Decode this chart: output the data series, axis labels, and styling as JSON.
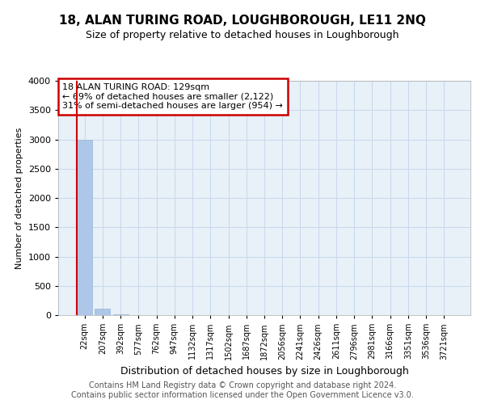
{
  "title": "18, ALAN TURING ROAD, LOUGHBOROUGH, LE11 2NQ",
  "subtitle": "Size of property relative to detached houses in Loughborough",
  "xlabel": "Distribution of detached houses by size in Loughborough",
  "ylabel": "Number of detached properties",
  "footnote1": "Contains HM Land Registry data © Crown copyright and database right 2024.",
  "footnote2": "Contains public sector information licensed under the Open Government Licence v3.0.",
  "bin_labels": [
    "22sqm",
    "207sqm",
    "392sqm",
    "577sqm",
    "762sqm",
    "947sqm",
    "1132sqm",
    "1317sqm",
    "1502sqm",
    "1687sqm",
    "1872sqm",
    "2056sqm",
    "2241sqm",
    "2426sqm",
    "2611sqm",
    "2796sqm",
    "2981sqm",
    "3166sqm",
    "3351sqm",
    "3536sqm",
    "3721sqm"
  ],
  "bar_values": [
    3000,
    110,
    10,
    4,
    2,
    1,
    1,
    0,
    0,
    0,
    0,
    0,
    0,
    0,
    0,
    0,
    0,
    0,
    0,
    0,
    0
  ],
  "bar_color": "#aec6e8",
  "bar_edge_color": "#9ab8d8",
  "grid_color": "#c8d8eb",
  "bg_color": "#e8f0f8",
  "property_line_x": 0,
  "property_line_color": "#cc0000",
  "annotation_text": "18 ALAN TURING ROAD: 129sqm\n← 69% of detached houses are smaller (2,122)\n31% of semi-detached houses are larger (954) →",
  "annotation_box_color": "#ffffff",
  "annotation_border_color": "#cc0000",
  "ylim": [
    0,
    4000
  ],
  "yticks": [
    0,
    500,
    1000,
    1500,
    2000,
    2500,
    3000,
    3500,
    4000
  ],
  "title_fontsize": 11,
  "subtitle_fontsize": 9,
  "footnote_fontsize": 7,
  "ylabel_fontsize": 8,
  "xlabel_fontsize": 9
}
